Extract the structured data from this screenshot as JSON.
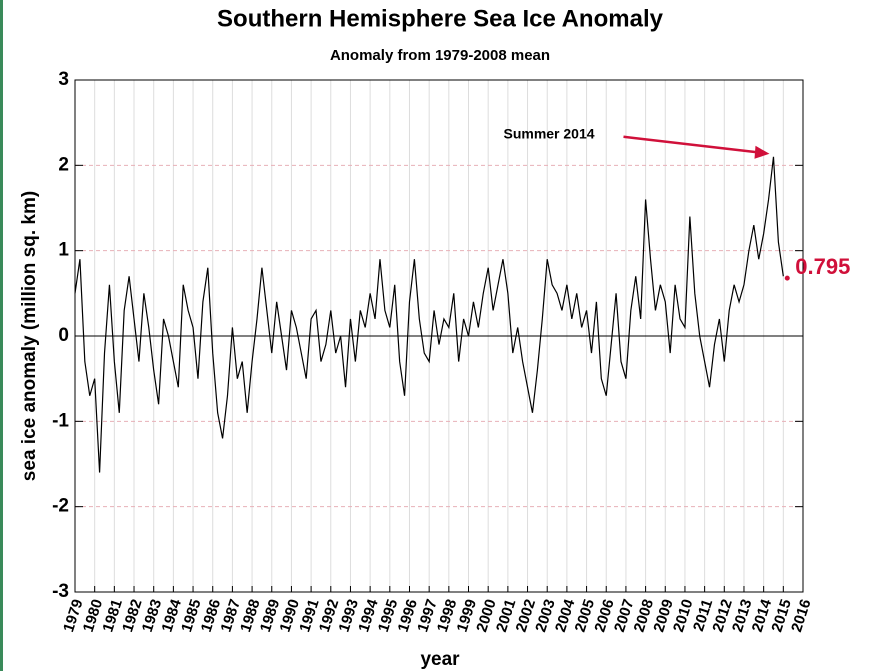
{
  "chart_data": {
    "type": "line",
    "title": "Southern Hemisphere Sea Ice Anomaly",
    "subtitle": "Anomaly from 1979-2008 mean",
    "x_label": "year",
    "y_label": "sea ice anomaly (million sq. km)",
    "xlim": [
      1979,
      2016
    ],
    "ylim": [
      -3,
      3
    ],
    "xticks": [
      1979,
      1980,
      1981,
      1982,
      1983,
      1984,
      1985,
      1986,
      1987,
      1988,
      1989,
      1990,
      1991,
      1992,
      1993,
      1994,
      1995,
      1996,
      1997,
      1998,
      1999,
      2000,
      2001,
      2002,
      2003,
      2004,
      2005,
      2006,
      2007,
      2008,
      2009,
      2010,
      2011,
      2012,
      2013,
      2014,
      2015,
      2016
    ],
    "yticks": [
      -3,
      -2,
      -1,
      0,
      1,
      2,
      3
    ],
    "grid": true,
    "series": [
      {
        "color": "#000000",
        "x": [
          1979,
          1979.25,
          1979.5,
          1979.75,
          1980,
          1980.25,
          1980.5,
          1980.75,
          1981,
          1981.25,
          1981.5,
          1981.75,
          1982,
          1982.25,
          1982.5,
          1982.75,
          1983,
          1983.25,
          1983.5,
          1983.75,
          1984,
          1984.25,
          1984.5,
          1984.75,
          1985,
          1985.25,
          1985.5,
          1985.75,
          1986,
          1986.25,
          1986.5,
          1986.75,
          1987,
          1987.25,
          1987.5,
          1987.75,
          1988,
          1988.25,
          1988.5,
          1988.75,
          1989,
          1989.25,
          1989.5,
          1989.75,
          1990,
          1990.25,
          1990.5,
          1990.75,
          1991,
          1991.25,
          1991.5,
          1991.75,
          1992,
          1992.25,
          1992.5,
          1992.75,
          1993,
          1993.25,
          1993.5,
          1993.75,
          1994,
          1994.25,
          1994.5,
          1994.75,
          1995,
          1995.25,
          1995.5,
          1995.75,
          1996,
          1996.25,
          1996.5,
          1996.75,
          1997,
          1997.25,
          1997.5,
          1997.75,
          1998,
          1998.25,
          1998.5,
          1998.75,
          1999,
          1999.25,
          1999.5,
          1999.75,
          2000,
          2000.25,
          2000.5,
          2000.75,
          2001,
          2001.25,
          2001.5,
          2001.75,
          2002,
          2002.25,
          2002.5,
          2002.75,
          2003,
          2003.25,
          2003.5,
          2003.75,
          2004,
          2004.25,
          2004.5,
          2004.75,
          2005,
          2005.25,
          2005.5,
          2005.75,
          2006,
          2006.25,
          2006.5,
          2006.75,
          2007,
          2007.25,
          2007.5,
          2007.75,
          2008,
          2008.25,
          2008.5,
          2008.75,
          2009,
          2009.25,
          2009.5,
          2009.75,
          2010,
          2010.25,
          2010.5,
          2010.75,
          2011,
          2011.25,
          2011.5,
          2011.75,
          2012,
          2012.25,
          2012.5,
          2012.75,
          2013,
          2013.25,
          2013.5,
          2013.75,
          2014,
          2014.25,
          2014.5,
          2014.75,
          2015
        ],
        "values": [
          0.5,
          0.9,
          -0.3,
          -0.7,
          -0.5,
          -1.6,
          -0.2,
          0.6,
          -0.3,
          -0.9,
          0.3,
          0.7,
          0.2,
          -0.3,
          0.5,
          0.1,
          -0.4,
          -0.8,
          0.2,
          0.0,
          -0.3,
          -0.6,
          0.6,
          0.3,
          0.1,
          -0.5,
          0.4,
          0.8,
          -0.2,
          -0.9,
          -1.2,
          -0.7,
          0.1,
          -0.5,
          -0.3,
          -0.9,
          -0.3,
          0.2,
          0.8,
          0.3,
          -0.2,
          0.4,
          0.0,
          -0.4,
          0.3,
          0.1,
          -0.2,
          -0.5,
          0.2,
          0.3,
          -0.3,
          -0.1,
          0.3,
          -0.2,
          0.0,
          -0.6,
          0.2,
          -0.3,
          0.3,
          0.1,
          0.5,
          0.2,
          0.9,
          0.3,
          0.1,
          0.6,
          -0.3,
          -0.7,
          0.4,
          0.9,
          0.2,
          -0.2,
          -0.3,
          0.3,
          -0.1,
          0.2,
          0.1,
          0.5,
          -0.3,
          0.2,
          0.0,
          0.4,
          0.1,
          0.5,
          0.8,
          0.3,
          0.6,
          0.9,
          0.5,
          -0.2,
          0.1,
          -0.3,
          -0.6,
          -0.9,
          -0.4,
          0.2,
          0.9,
          0.6,
          0.5,
          0.3,
          0.6,
          0.2,
          0.5,
          0.1,
          0.3,
          -0.2,
          0.4,
          -0.5,
          -0.7,
          -0.1,
          0.5,
          -0.3,
          -0.5,
          0.3,
          0.7,
          0.2,
          1.6,
          0.9,
          0.3,
          0.6,
          0.4,
          -0.2,
          0.6,
          0.2,
          0.1,
          1.4,
          0.5,
          0.0,
          -0.3,
          -0.6,
          -0.1,
          0.2,
          -0.3,
          0.3,
          0.6,
          0.4,
          0.6,
          1.0,
          1.3,
          0.9,
          1.2,
          1.6,
          2.1,
          1.1,
          0.7
        ]
      }
    ],
    "annotations": [
      {
        "text": "Summer 2014",
        "x": 2014.5,
        "y": 2.1
      },
      {
        "text": 0.795,
        "x": 2015.2,
        "y": 0.795,
        "color": "#d0103a"
      }
    ]
  }
}
